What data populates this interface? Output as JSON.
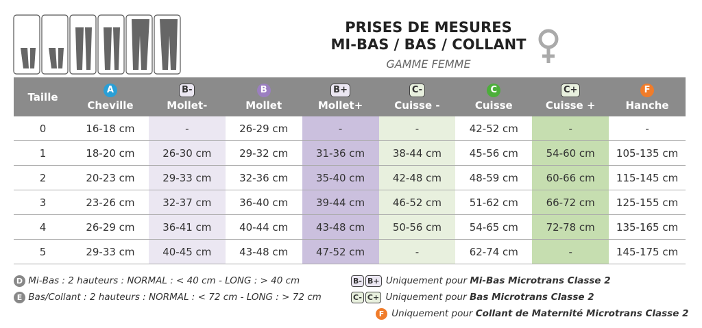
{
  "header": {
    "title": [
      "PRISES DE MESURES",
      "MI-BAS / BAS / COLLANT"
    ],
    "subtitle": "GAMME FEMME"
  },
  "table": {
    "size_label": "Taille",
    "columns": [
      {
        "badge": "A",
        "name": "Cheville"
      },
      {
        "badge": "B-",
        "name": "Mollet-"
      },
      {
        "badge": "B",
        "name": "Mollet"
      },
      {
        "badge": "B+",
        "name": "Mollet+"
      },
      {
        "badge": "C-",
        "name": "Cuisse -"
      },
      {
        "badge": "C",
        "name": "Cuisse"
      },
      {
        "badge": "C+",
        "name": "Cuisse +"
      },
      {
        "badge": "F",
        "name": "Hanche"
      }
    ],
    "rows": [
      [
        "0",
        "16-18 cm",
        "-",
        "26-29 cm",
        "-",
        "-",
        "42-52 cm",
        "-",
        "-"
      ],
      [
        "1",
        "18-20 cm",
        "26-30 cm",
        "29-32 cm",
        "31-36 cm",
        "38-44 cm",
        "45-56 cm",
        "54-60 cm",
        "105-135 cm"
      ],
      [
        "2",
        "20-23 cm",
        "29-33 cm",
        "32-36 cm",
        "35-40 cm",
        "42-48 cm",
        "48-59 cm",
        "60-66 cm",
        "115-145 cm"
      ],
      [
        "3",
        "23-26 cm",
        "32-37 cm",
        "36-40 cm",
        "39-44 cm",
        "46-52 cm",
        "51-62 cm",
        "66-72 cm",
        "125-155 cm"
      ],
      [
        "4",
        "26-29 cm",
        "36-41 cm",
        "40-44 cm",
        "43-48 cm",
        "50-56 cm",
        "54-65 cm",
        "72-78 cm",
        "135-165 cm"
      ],
      [
        "5",
        "29-33 cm",
        "40-45 cm",
        "43-48 cm",
        "47-52 cm",
        "-",
        "62-74 cm",
        "-",
        "145-175 cm"
      ]
    ]
  },
  "notes": {
    "left": [
      {
        "badge": "D",
        "text": "Mi-Bas : 2 hauteurs : NORMAL : < 40 cm - LONG : > 40 cm"
      },
      {
        "badge": "E",
        "text": "Bas/Collant : 2 hauteurs : NORMAL : < 72 cm - LONG : > 72 cm"
      }
    ],
    "right": [
      {
        "badges": [
          "B-",
          "B+"
        ],
        "prefix": "Uniquement pour",
        "product": "Mi-Bas Microtrans Classe 2"
      },
      {
        "badges": [
          "C-",
          "C+"
        ],
        "prefix": "Uniquement pour",
        "product": "Bas Microtrans Classe 2"
      },
      {
        "badges": [
          "F"
        ],
        "prefix": "Uniquement pour",
        "product": "Collant de Maternité Microtrans Classe 2"
      }
    ]
  }
}
